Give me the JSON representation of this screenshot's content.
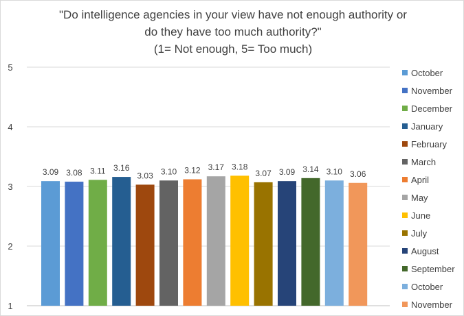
{
  "chart_data": {
    "type": "bar",
    "title_lines": [
      "\"Do intelligence agencies in your view have not enough authority or",
      "do they have too much authority?\"",
      "(1= Not enough, 5= Too much)"
    ],
    "xlabel": "",
    "ylabel": "",
    "ylim": [
      1,
      5
    ],
    "yticks": [
      "1",
      "2",
      "3",
      "4",
      "5"
    ],
    "grid": true,
    "legend_position": "right",
    "series": [
      {
        "name": "October",
        "value": 3.09,
        "label": "3.09",
        "color": "#5B9BD5"
      },
      {
        "name": "November",
        "value": 3.08,
        "label": "3.08",
        "color": "#4472C4"
      },
      {
        "name": "December",
        "value": 3.11,
        "label": "3.11",
        "color": "#70AD47"
      },
      {
        "name": "January",
        "value": 3.16,
        "label": "3.16",
        "color": "#255E91"
      },
      {
        "name": "February",
        "value": 3.03,
        "label": "3.03",
        "color": "#9E480E"
      },
      {
        "name": "March",
        "value": 3.1,
        "label": "3.10",
        "color": "#636363"
      },
      {
        "name": "April",
        "value": 3.12,
        "label": "3.12",
        "color": "#ED7D31"
      },
      {
        "name": "May",
        "value": 3.17,
        "label": "3.17",
        "color": "#A5A5A5"
      },
      {
        "name": "June",
        "value": 3.18,
        "label": "3.18",
        "color": "#FFC000"
      },
      {
        "name": "July",
        "value": 3.07,
        "label": "3.07",
        "color": "#997300"
      },
      {
        "name": "August",
        "value": 3.09,
        "label": "3.09",
        "color": "#264478"
      },
      {
        "name": "September",
        "value": 3.14,
        "label": "3.14",
        "color": "#43682B"
      },
      {
        "name": "October",
        "value": 3.1,
        "label": "3.10",
        "color": "#7CAFDD"
      },
      {
        "name": "November",
        "value": 3.06,
        "label": "3.06",
        "color": "#F1975A"
      }
    ]
  }
}
